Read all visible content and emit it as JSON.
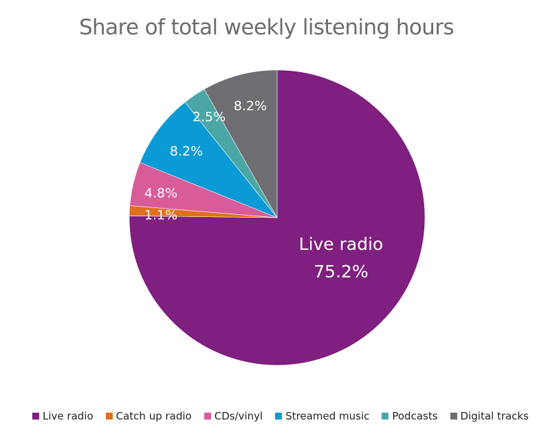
{
  "chart_data": {
    "type": "pie",
    "title": "Share of total weekly listening hours",
    "categories": [
      "Live radio",
      "Catch up radio",
      "CDs/vinyl",
      "Streamed music",
      "Podcasts",
      "Digital tracks"
    ],
    "values": [
      75.2,
      1.1,
      4.8,
      8.2,
      2.5,
      8.2
    ],
    "unit": "%",
    "colors": [
      "#7F1F7F",
      "#E07020",
      "#D95C9A",
      "#0A9AD6",
      "#4AA7A6",
      "#6E6D72"
    ],
    "data_labels": [
      "Live radio 75.2%",
      "1.1%",
      "4.8%",
      "8.2%",
      "2.5%",
      "8.2%"
    ],
    "start_angle": "12 o'clock",
    "direction": "clockwise",
    "legend_position": "bottom"
  },
  "title": "Share of total weekly listening hours",
  "labels": {
    "live_radio_name": "Live radio",
    "live_radio_value": "75.2%",
    "catch_up": "1.1%",
    "cds_vinyl": "4.8%",
    "streamed": "8.2%",
    "podcasts": "2.5%",
    "digital": "8.2%"
  },
  "legend": [
    {
      "label": "Live radio",
      "color": "#7F1F7F"
    },
    {
      "label": "Catch up radio",
      "color": "#E07020"
    },
    {
      "label": "CDs/vinyl",
      "color": "#D95C9A"
    },
    {
      "label": "Streamed music",
      "color": "#0A9AD6"
    },
    {
      "label": "Podcasts",
      "color": "#4AA7A6"
    },
    {
      "label": "Digital tracks",
      "color": "#6E6D72"
    }
  ]
}
